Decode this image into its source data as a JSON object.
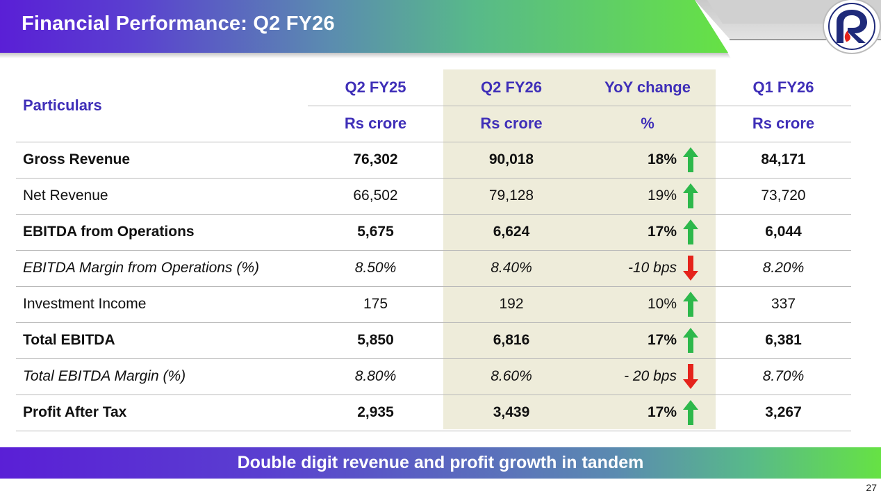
{
  "header": {
    "title": "Financial Performance: Q2 FY26",
    "logo_name": "company-logo"
  },
  "table": {
    "particulars_label": "Particulars",
    "columns": [
      {
        "period": "Q2 FY25",
        "unit": "Rs crore"
      },
      {
        "period": "Q2 FY26",
        "unit": "Rs crore"
      },
      {
        "period": "YoY change",
        "unit": "%"
      },
      {
        "period": "Q1 FY26",
        "unit": "Rs crore"
      }
    ],
    "rows": [
      {
        "label": "Gross Revenue",
        "style": "bold",
        "q2fy25": "76,302",
        "q2fy26": "90,018",
        "yoy": "18%",
        "trend": "up",
        "q1fy26": "84,171"
      },
      {
        "label": "Net Revenue",
        "style": "normal",
        "q2fy25": "66,502",
        "q2fy26": "79,128",
        "yoy": "19%",
        "trend": "up",
        "q1fy26": "73,720"
      },
      {
        "label": "EBITDA from Operations",
        "style": "bold",
        "q2fy25": "5,675",
        "q2fy26": "6,624",
        "yoy": "17%",
        "trend": "up",
        "q1fy26": "6,044"
      },
      {
        "label": "EBITDA Margin from Operations (%)",
        "style": "italic",
        "q2fy25": "8.50%",
        "q2fy26": "8.40%",
        "yoy": "-10 bps",
        "trend": "down",
        "q1fy26": "8.20%"
      },
      {
        "label": "Investment Income",
        "style": "normal",
        "q2fy25": "175",
        "q2fy26": "192",
        "yoy": "10%",
        "trend": "up",
        "q1fy26": "337"
      },
      {
        "label": "Total EBITDA",
        "style": "bold",
        "q2fy25": "5,850",
        "q2fy26": "6,816",
        "yoy": "17%",
        "trend": "up",
        "q1fy26": "6,381"
      },
      {
        "label": "Total EBITDA Margin (%)",
        "style": "italic",
        "q2fy25": "8.80%",
        "q2fy26": "8.60%",
        "yoy": "- 20 bps",
        "trend": "down",
        "q1fy26": "8.70%"
      },
      {
        "label": "Profit After Tax",
        "style": "bold",
        "q2fy25": "2,935",
        "q2fy26": "3,439",
        "yoy": "17%",
        "trend": "up",
        "q1fy26": "3,267"
      }
    ]
  },
  "colors": {
    "header_text": "#3f2fb8",
    "highlight_column": "#eeecda",
    "arrow_up": "#2db84b",
    "arrow_down": "#e5231b"
  },
  "icons": {
    "up": "arrow-up-icon",
    "down": "arrow-down-icon"
  },
  "footer": {
    "banner": "Double digit revenue and profit growth in tandem",
    "page_number": "27"
  }
}
